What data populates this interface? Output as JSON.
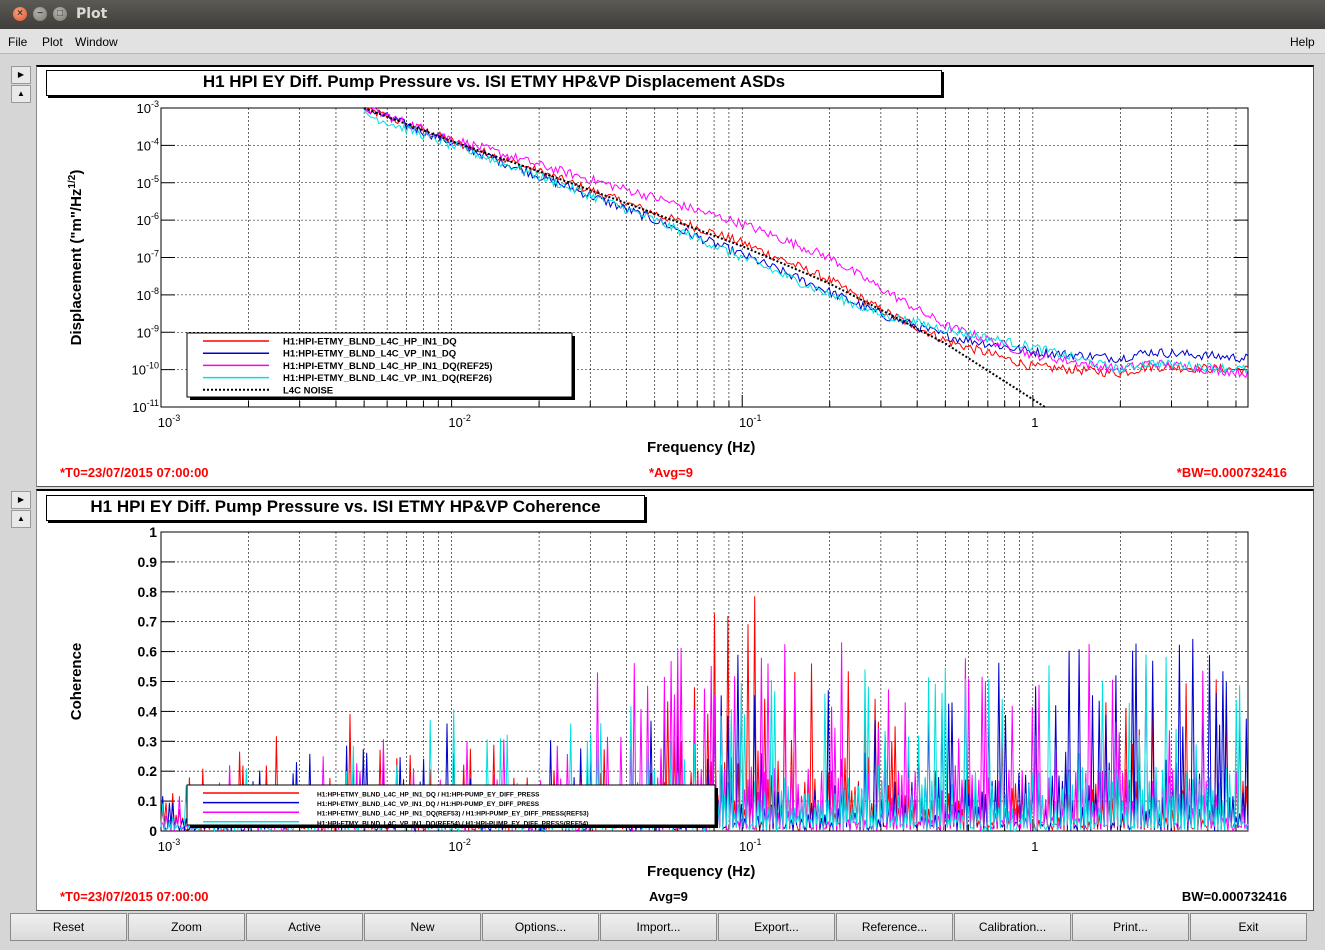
{
  "window": {
    "title": "Plot"
  },
  "menu": {
    "file": "File",
    "plot": "Plot",
    "window": "Window",
    "help": "Help"
  },
  "buttons": [
    "Reset",
    "Zoom",
    "Active",
    "New",
    "Options...",
    "Import...",
    "Export...",
    "Reference...",
    "Calibration...",
    "Print...",
    "Exit"
  ],
  "chart_data": [
    {
      "type": "line",
      "title": "H1 HPI EY Diff. Pump Pressure vs. ISI ETMY HP&VP Displacement ASDs",
      "xlabel": "Frequency (Hz)",
      "ylabel": "Displacement (\"m\"/Hz^1/2)",
      "xscale": "log",
      "yscale": "log",
      "xlim": [
        0.001,
        5.5
      ],
      "ylim": [
        1e-11,
        0.001
      ],
      "x_tick_labels": [
        "10^-3",
        "10^-2",
        "10^-1",
        "1"
      ],
      "y_tick_labels": [
        "10^-3",
        "10^-4",
        "10^-5",
        "10^-6",
        "10^-7",
        "10^-8",
        "10^-9",
        "10^-10",
        "10^-11"
      ],
      "grid": true,
      "legend_position": "bottom-left",
      "footer": {
        "left": "*T0=23/07/2015 07:00:00",
        "center": "*Avg=9",
        "right": "*BW=0.000732416"
      },
      "series": [
        {
          "name": "H1:HPI-ETMY_BLND_L4C_HP_IN1_DQ",
          "color": "#ff0000",
          "x": [
            0.005,
            0.01,
            0.02,
            0.05,
            0.1,
            0.2,
            0.3,
            0.5,
            1,
            2,
            2.5,
            5.5
          ],
          "y": [
            0.001,
            0.00013,
            2e-05,
            1.5e-06,
            2.5e-07,
            2.5e-08,
            4e-09,
            6e-10,
            1.2e-10,
            8e-11,
            1.2e-10,
            1e-10
          ]
        },
        {
          "name": "H1:HPI-ETMY_BLND_L4C_VP_IN1_DQ",
          "color": "#0000cc",
          "x": [
            0.005,
            0.01,
            0.02,
            0.05,
            0.1,
            0.2,
            0.3,
            0.5,
            1,
            2,
            2.5,
            5.5
          ],
          "y": [
            0.001,
            0.00012,
            1.5e-05,
            1e-06,
            1.2e-07,
            1.2e-08,
            3e-09,
            8e-10,
            3e-10,
            2e-10,
            3e-10,
            2e-10
          ]
        },
        {
          "name": "H1:HPI-ETMY_BLND_L4C_HP_IN1_DQ(REF25)",
          "color": "#ff00ff",
          "x": [
            0.005,
            0.01,
            0.02,
            0.05,
            0.1,
            0.2,
            0.3,
            0.5,
            1,
            2,
            2.5,
            5.5
          ],
          "y": [
            0.001,
            0.00015,
            3e-05,
            4e-06,
            8e-07,
            1e-07,
            1.5e-08,
            1.5e-09,
            2.5e-10,
            1e-10,
            1.5e-10,
            8e-11
          ]
        },
        {
          "name": "H1:HPI-ETMY_BLND_L4C_VP_IN1_DQ(REF26)",
          "color": "#00e0e0",
          "x": [
            0.005,
            0.01,
            0.02,
            0.05,
            0.1,
            0.2,
            0.3,
            0.5,
            1,
            2,
            2.5,
            5.5
          ],
          "y": [
            0.0007,
            0.0001,
            1.5e-05,
            1e-06,
            1e-07,
            1e-08,
            3e-09,
            1.2e-09,
            4e-10,
            1e-10,
            1.5e-10,
            1e-10
          ]
        },
        {
          "name": "L4C NOISE",
          "color": "#000000",
          "dash": true,
          "x": [
            0.005,
            0.01,
            0.02,
            0.05,
            0.1,
            0.2,
            0.3,
            0.5,
            1.1
          ],
          "y": [
            0.001,
            0.00013,
            2e-05,
            1.5e-06,
            2e-07,
            2e-08,
            4e-09,
            5e-10,
            1e-11
          ]
        }
      ]
    },
    {
      "type": "line",
      "title": "H1 HPI EY Diff. Pump Pressure vs. ISI ETMY HP&VP Coherence",
      "xlabel": "Frequency (Hz)",
      "ylabel": "Coherence",
      "xscale": "log",
      "xlim": [
        0.001,
        5.5
      ],
      "ylim": [
        0,
        1
      ],
      "x_tick_labels": [
        "10^-3",
        "10^-2",
        "10^-1",
        "1"
      ],
      "y_tick_labels": [
        "1",
        "0.9",
        "0.8",
        "0.7",
        "0.6",
        "0.5",
        "0.4",
        "0.3",
        "0.2",
        "0.1",
        "0"
      ],
      "grid": true,
      "legend_position": "bottom-left",
      "footer": {
        "left": "*T0=23/07/2015 07:00:00",
        "center": "Avg=9",
        "right": "BW=0.000732416"
      },
      "series": [
        {
          "name": "H1:HPI-ETMY_BLND_L4C_HP_IN1_DQ / H1:HPI-PUMP_EY_DIFF_PRESS",
          "color": "#ff0000",
          "x": [
            0.001,
            0.004,
            0.0045,
            0.01,
            0.03,
            0.06,
            0.075,
            0.11,
            0.3,
            1,
            3,
            5.5
          ],
          "y": [
            0.2,
            0.4,
            0.42,
            0.3,
            0.3,
            0.5,
            0.76,
            0.82,
            0.5,
            0.5,
            0.6,
            0.55
          ]
        },
        {
          "name": "H1:HPI-ETMY_BLND_L4C_VP_IN1_DQ / H1:HPI-PUMP_EY_DIFF_PRESS",
          "color": "#0000cc",
          "x": [
            0.001,
            0.003,
            0.007,
            0.013,
            0.03,
            0.06,
            0.1,
            0.3,
            1,
            3,
            5.5
          ],
          "y": [
            0.15,
            0.26,
            0.4,
            0.35,
            0.3,
            0.45,
            0.6,
            0.5,
            0.6,
            0.7,
            0.6
          ]
        },
        {
          "name": "H1:HPI-ETMY_BLND_L4C_HP_IN1_DQ(REF53) / H1:HPI-PUMP_EY_DIFF_PRESS(REF53)",
          "color": "#ff00ff",
          "x": [
            0.001,
            0.005,
            0.01,
            0.02,
            0.05,
            0.1,
            0.3,
            1,
            3,
            5.5
          ],
          "y": [
            0.2,
            0.3,
            0.35,
            0.5,
            0.63,
            0.65,
            0.67,
            0.6,
            0.67,
            0.6
          ]
        },
        {
          "name": "H1:HPI-ETMY_BLND_L4C_VP_IN1_DQ(REF54) / H1:HPI-PUMP_EY_DIFF_PRESS(REF54)",
          "color": "#00e0e0",
          "x": [
            0.001,
            0.005,
            0.016,
            0.03,
            0.06,
            0.1,
            0.3,
            1,
            3,
            5.5
          ],
          "y": [
            0.15,
            0.3,
            0.48,
            0.4,
            0.45,
            0.5,
            0.55,
            0.6,
            0.63,
            0.6
          ]
        }
      ]
    }
  ]
}
